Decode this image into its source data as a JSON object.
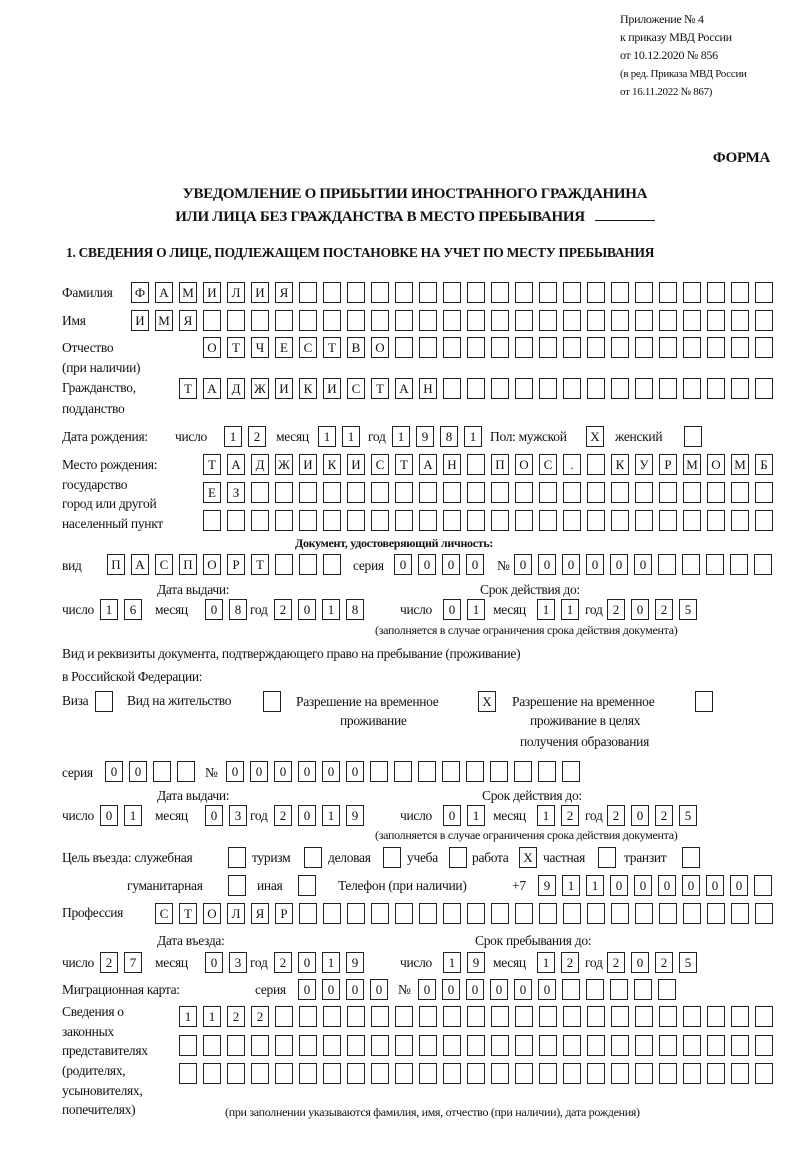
{
  "header": {
    "appendix": "Приложение № 4",
    "order": "к приказу МВД России",
    "order_date": "от 10.12.2020 № 856",
    "edition_1": "(в ред. Приказа МВД России",
    "edition_2": "от 16.11.2022 № 867)",
    "form": "ФОРМА",
    "title_1": "УВЕДОМЛЕНИЕ О ПРИБЫТИИ ИНОСТРАННОГО ГРАЖДАНИНА",
    "title_2": "ИЛИ ЛИЦА БЕЗ ГРАЖДАНСТВА В МЕСТО ПРЕБЫВАНИЯ",
    "section_1": "1. СВЕДЕНИЯ О ЛИЦЕ, ПОДЛЕЖАЩЕМ ПОСТАНОВКЕ НА УЧЕТ ПО МЕСТУ ПРЕБЫВАНИЯ"
  },
  "labels": {
    "surname": "Фамилия",
    "name": "Имя",
    "patronymic_1": "Отчество",
    "patronymic_2": "(при наличии)",
    "citizenship_1": "Гражданство,",
    "citizenship_2": "подданство",
    "birth_date": "Дата рождения:",
    "day": "число",
    "month": "месяц",
    "year": "год",
    "sex": "Пол: мужской",
    "female": "женский",
    "birthplace_1": "Место рождения:",
    "birthplace_2": "государство",
    "birthplace_3": "город или другой",
    "birthplace_4": "населенный пункт",
    "id_doc": "Документ, удостоверяющий личность:",
    "kind": "вид",
    "series": "серия",
    "number": "№",
    "issue_date": "Дата выдачи:",
    "valid_until": "Срок действия до:",
    "valid_note": "(заполняется в случае ограничения срока действия документа)",
    "stay_doc_1": "Вид и реквизиты документа, подтверждающего право на пребывание (проживание)",
    "stay_doc_2": "в Российской Федерации:",
    "visa": "Виза",
    "residence": "Вид на жительство",
    "trp_1": "Разрешение на временное",
    "trp_2": "проживание",
    "trp_edu_1": "Разрешение на временное",
    "trp_edu_2": "проживание в целях",
    "trp_edu_3": "получения образования",
    "purpose": "Цель въезда: служебная",
    "tourism": "туризм",
    "business": "деловая",
    "study": "учеба",
    "work": "работа",
    "private": "частная",
    "transit": "транзит",
    "humanitarian": "гуманитарная",
    "other": "иная",
    "phone": "Телефон (при наличии)",
    "phone_prefix": "+7",
    "profession": "Профессия",
    "entry_date": "Дата въезда:",
    "stay_until": "Срок пребывания до:",
    "migration_card": "Миграционная карта:",
    "reps_1": "Сведения о",
    "reps_2": "законных",
    "reps_3": "представителях",
    "reps_4": "(родителях,",
    "reps_5": "усыновителях,",
    "reps_6": "попечителях)",
    "reps_note": "(при заполнении указываются фамилия, имя, отчество (при наличии), дата рождения)"
  },
  "fields": {
    "surname": "ФАМИЛИЯ",
    "name": "ИМЯ",
    "patronymic": "ОТЧЕСТВО",
    "citizenship": "ТАДЖИКИСТАН",
    "birth_day": "12",
    "birth_month": "11",
    "birth_year": "1981",
    "sex_male": "X",
    "sex_female": "",
    "birthplace_1": "ТАДЖИКИСТАН ПОС. КУРМОМБ",
    "birthplace_2": "ЕЗ",
    "birthplace_3": "",
    "id_kind": "ПАСПОРТ",
    "id_series": "0000",
    "id_number": "000000",
    "id_issue_day": "16",
    "id_issue_month": "08",
    "id_issue_year": "2018",
    "id_valid_day": "01",
    "id_valid_month": "11",
    "id_valid_year": "2025",
    "visa": "",
    "residence": "",
    "trp": "X",
    "trp_edu": "",
    "stay_series": "00",
    "stay_number": "000000",
    "stay_issue_day": "01",
    "stay_issue_month": "03",
    "stay_issue_year": "2019",
    "stay_valid_day": "01",
    "stay_valid_month": "12",
    "stay_valid_year": "2025",
    "purpose_official": "",
    "purpose_tourism": "",
    "purpose_business": "",
    "purpose_study": "",
    "purpose_work": "X",
    "purpose_private": "",
    "purpose_transit": "",
    "purpose_humanitarian": "",
    "purpose_other": "",
    "phone": "911000000",
    "profession": "СТОЛЯР",
    "entry_day": "27",
    "entry_month": "03",
    "entry_year": "2019",
    "stay_day": "19",
    "stay_month": "12",
    "stay_year": "2025",
    "mig_series": "0000",
    "mig_number": "000000",
    "reps_1": "1122",
    "reps_2": "",
    "reps_3": ""
  }
}
